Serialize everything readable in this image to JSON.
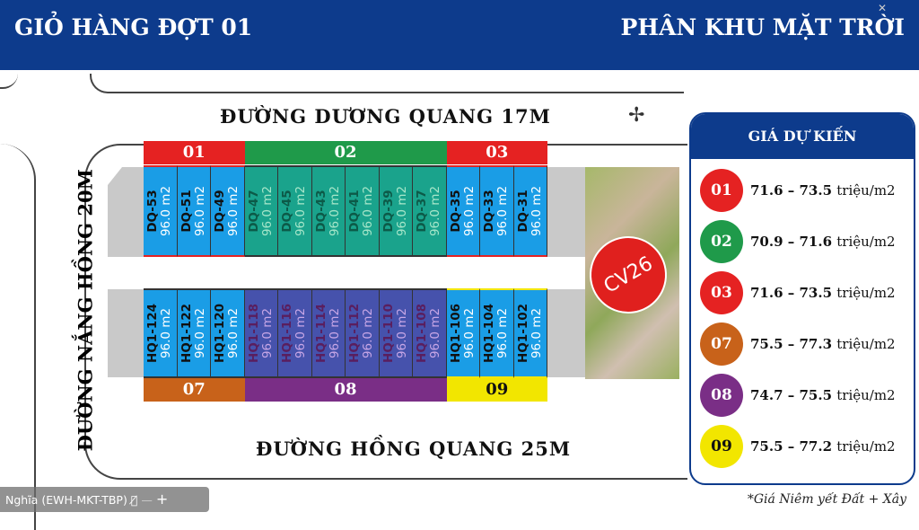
{
  "header": {
    "left_title": "GIỎ HÀNG ĐỢT 01",
    "right_title": "PHÂN KHU MẶT TRỜI"
  },
  "roads": {
    "top": "ĐƯỜNG DƯƠNG QUANG 17M",
    "bottom": "ĐƯỜNG HỒNG QUANG 25M",
    "left": "ĐƯỜNG NẮNG HỒNG 20M"
  },
  "park_label": "CV26",
  "zones_top": [
    {
      "id": "01",
      "color": "#e52222",
      "lots": 3
    },
    {
      "id": "02",
      "color": "#1f9a4a",
      "lots": 6
    },
    {
      "id": "03",
      "color": "#e52222",
      "lots": 3
    }
  ],
  "zones_bottom": [
    {
      "id": "07",
      "color": "#c8621a",
      "lots": 3
    },
    {
      "id": "08",
      "color": "#7a2e86",
      "lots": 6
    },
    {
      "id": "09",
      "color": "#f2e600",
      "lots": 3
    }
  ],
  "lots_top": [
    {
      "code": "DQ-53",
      "area": "96.0 m2",
      "zone": "01"
    },
    {
      "code": "DQ-51",
      "area": "96.0 m2",
      "zone": "01"
    },
    {
      "code": "DQ-49",
      "area": "96.0 m2",
      "zone": "01"
    },
    {
      "code": "DQ-47",
      "area": "96.0 m2",
      "zone": "02"
    },
    {
      "code": "DQ-45",
      "area": "96.0 m2",
      "zone": "02"
    },
    {
      "code": "DQ-43",
      "area": "96.0 m2",
      "zone": "02"
    },
    {
      "code": "DQ-41",
      "area": "96.0 m2",
      "zone": "02"
    },
    {
      "code": "DQ-39",
      "area": "96.0 m2",
      "zone": "02"
    },
    {
      "code": "DQ-37",
      "area": "96.0 m2",
      "zone": "02"
    },
    {
      "code": "DQ-35",
      "area": "96.0 m2",
      "zone": "03"
    },
    {
      "code": "DQ-33",
      "area": "96.0 m2",
      "zone": "03"
    },
    {
      "code": "DQ-31",
      "area": "96.0 m2",
      "zone": "03"
    }
  ],
  "lots_bottom": [
    {
      "code": "HQ1-124",
      "area": "96.0 m2",
      "zone": "07"
    },
    {
      "code": "HQ1-122",
      "area": "96.0 m2",
      "zone": "07"
    },
    {
      "code": "HQ1-120",
      "area": "96.0 m2",
      "zone": "07"
    },
    {
      "code": "HQ1-118",
      "area": "96.0 m2",
      "zone": "08"
    },
    {
      "code": "HQ1-116",
      "area": "96.0 m2",
      "zone": "08"
    },
    {
      "code": "HQ1-114",
      "area": "96.0 m2",
      "zone": "08"
    },
    {
      "code": "HQ1-112",
      "area": "96.0 m2",
      "zone": "08"
    },
    {
      "code": "HQ1-110",
      "area": "96.0 m2",
      "zone": "08"
    },
    {
      "code": "HQ1-108",
      "area": "96.0 m2",
      "zone": "08"
    },
    {
      "code": "HQ1-106",
      "area": "96.0 m2",
      "zone": "09"
    },
    {
      "code": "HQ1-104",
      "area": "96.0 m2",
      "zone": "09"
    },
    {
      "code": "HQ1-102",
      "area": "96.0 m2",
      "zone": "09"
    }
  ],
  "legend": {
    "title": "GIÁ DỰ KIẾN",
    "unit": "triệu/m2",
    "items": [
      {
        "id": "01",
        "range": "71.6 – 73.5",
        "color": "#e52222"
      },
      {
        "id": "02",
        "range": "70.9 – 71.6",
        "color": "#1f9a4a"
      },
      {
        "id": "03",
        "range": "71.6 – 73.5",
        "color": "#e52222"
      },
      {
        "id": "07",
        "range": "75.5 – 77.3",
        "color": "#c8621a"
      },
      {
        "id": "08",
        "range": "74.7 – 75.5",
        "color": "#7a2e86"
      },
      {
        "id": "09",
        "range": "75.5 – 77.2",
        "color": "#f2e600"
      }
    ]
  },
  "note": "*Giá Niêm yết Đất + Xây",
  "call_overlay": {
    "participant": "Nghĩa (EWH-MKT-TBP)",
    "mic_icon": "mic-muted-icon",
    "minus": "—",
    "plus": "+"
  }
}
